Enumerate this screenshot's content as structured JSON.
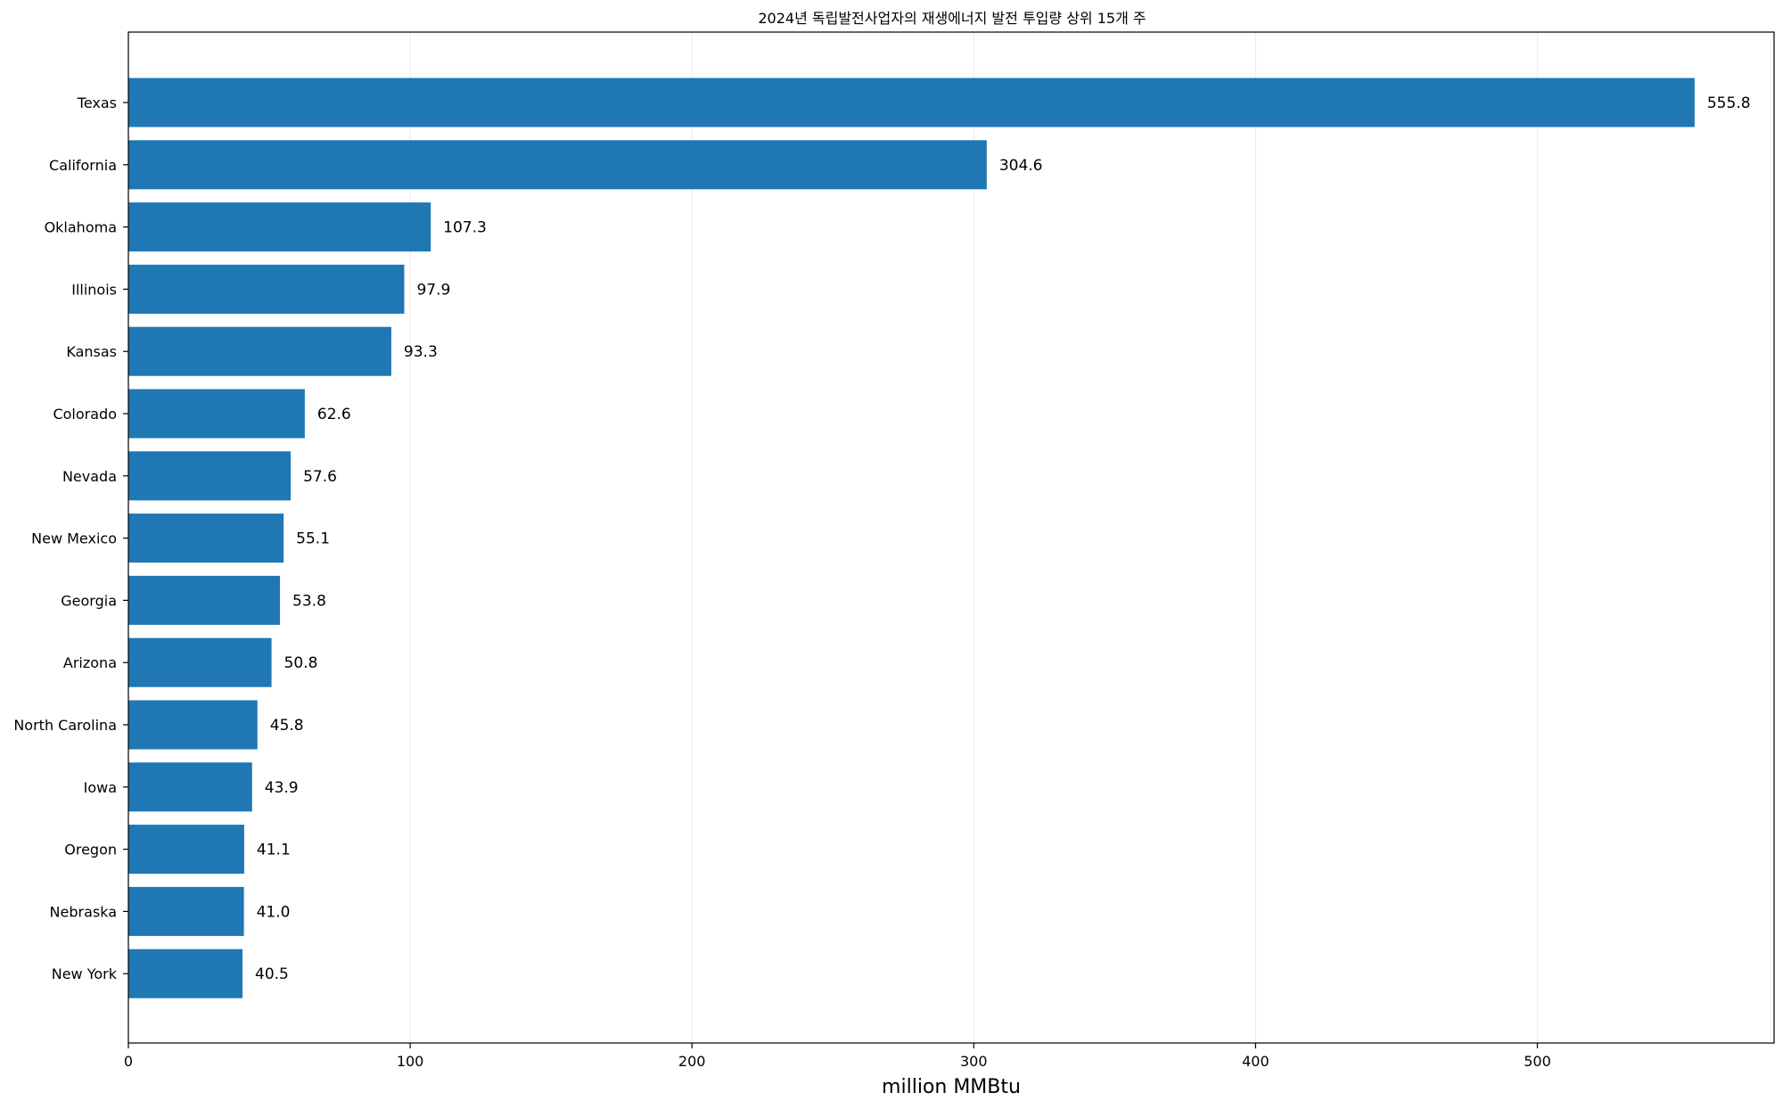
{
  "chart_data": {
    "type": "bar",
    "orientation": "horizontal",
    "title": "2024년 독립발전사업자의 재생에너지 발전 투입량 상위 15개 주",
    "xlabel": "million MMBtu",
    "ylabel": "",
    "xlim": [
      0,
      584
    ],
    "xticks": [
      0,
      100,
      200,
      300,
      400,
      500
    ],
    "grid": "vertical",
    "bar_color": "#1f77b4",
    "categories": [
      "Texas",
      "California",
      "Oklahoma",
      "Illinois",
      "Kansas",
      "Colorado",
      "Nevada",
      "New Mexico",
      "Georgia",
      "Arizona",
      "North Carolina",
      "Iowa",
      "Oregon",
      "Nebraska",
      "New York"
    ],
    "values": [
      555.8,
      304.6,
      107.3,
      97.9,
      93.3,
      62.6,
      57.6,
      55.1,
      53.8,
      50.8,
      45.8,
      43.9,
      41.1,
      41.0,
      40.5
    ],
    "value_labels": [
      "555.8",
      "304.6",
      "107.3",
      "97.9",
      "93.3",
      "62.6",
      "57.6",
      "55.1",
      "53.8",
      "50.8",
      "45.8",
      "43.9",
      "41.1",
      "41.0",
      "40.5"
    ]
  }
}
